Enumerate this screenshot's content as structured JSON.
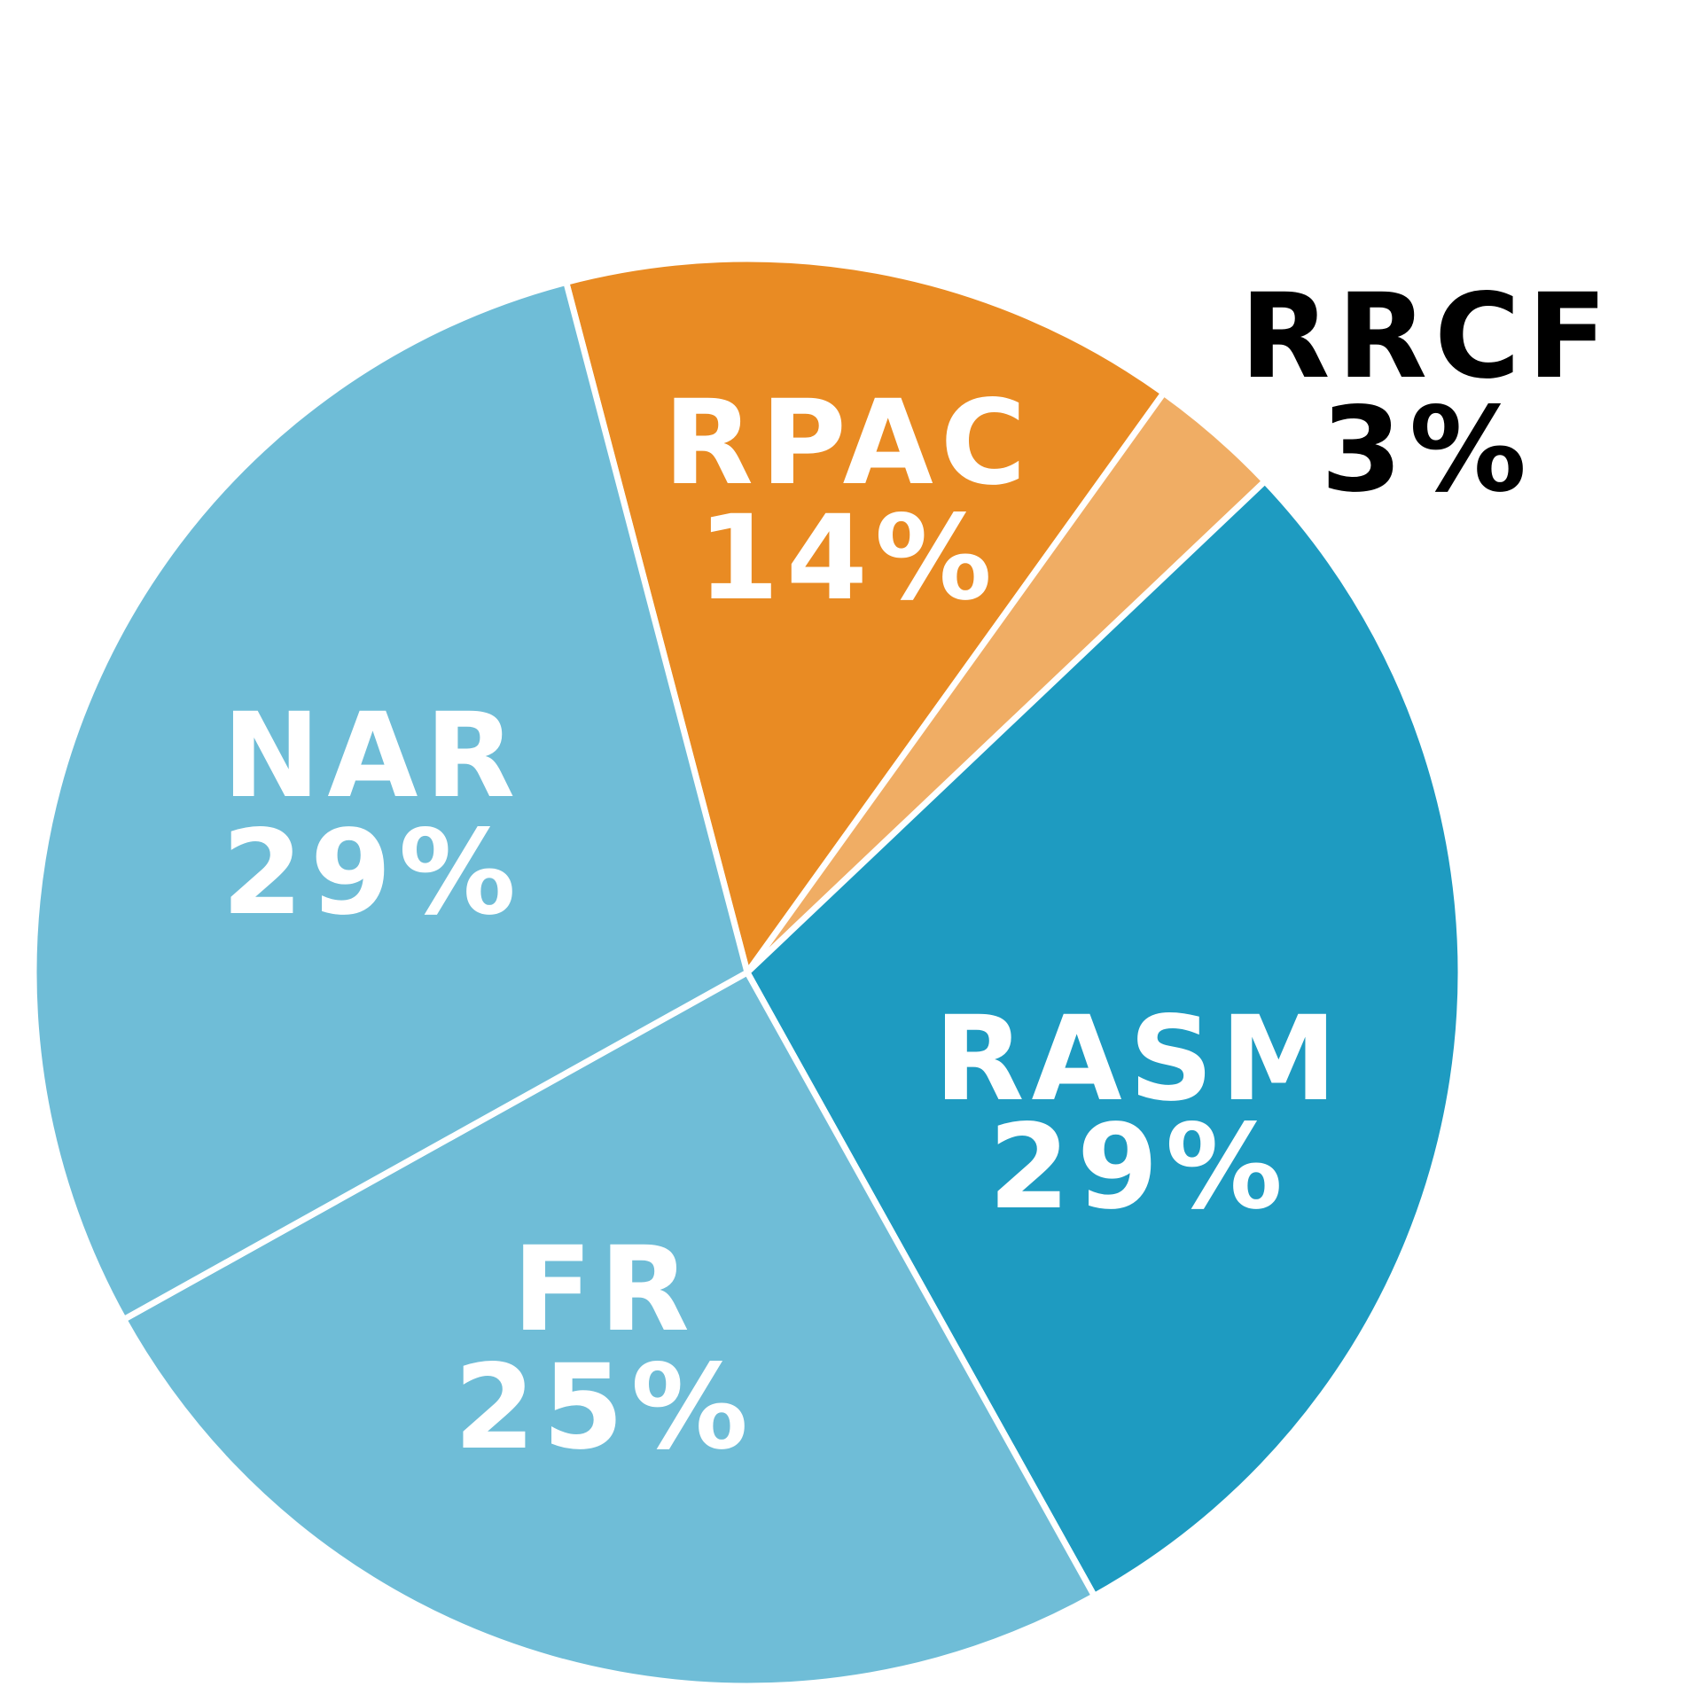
{
  "chart_data": {
    "type": "pie",
    "start_angle_deg": -14.7,
    "direction": "clockwise",
    "slices": [
      {
        "label": "RPAC",
        "percent_label": "14%",
        "value": 14,
        "color": "#E98B23",
        "label_color": "#FFFFFF"
      },
      {
        "label": "RRCF",
        "percent_label": "3%",
        "value": 3,
        "color": "#F0AD64",
        "label_color": "#000000"
      },
      {
        "label": "RASM",
        "percent_label": "29%",
        "value": 29,
        "color": "#1E9BC1",
        "label_color": "#FFFFFF"
      },
      {
        "label": "FR",
        "percent_label": "25%",
        "value": 25,
        "color": "#6FBDD7",
        "label_color": "#FFFFFF"
      },
      {
        "label": "NAR",
        "percent_label": "29%",
        "value": 29,
        "color": "#6FBDD7",
        "label_color": "#FFFFFF"
      }
    ]
  }
}
